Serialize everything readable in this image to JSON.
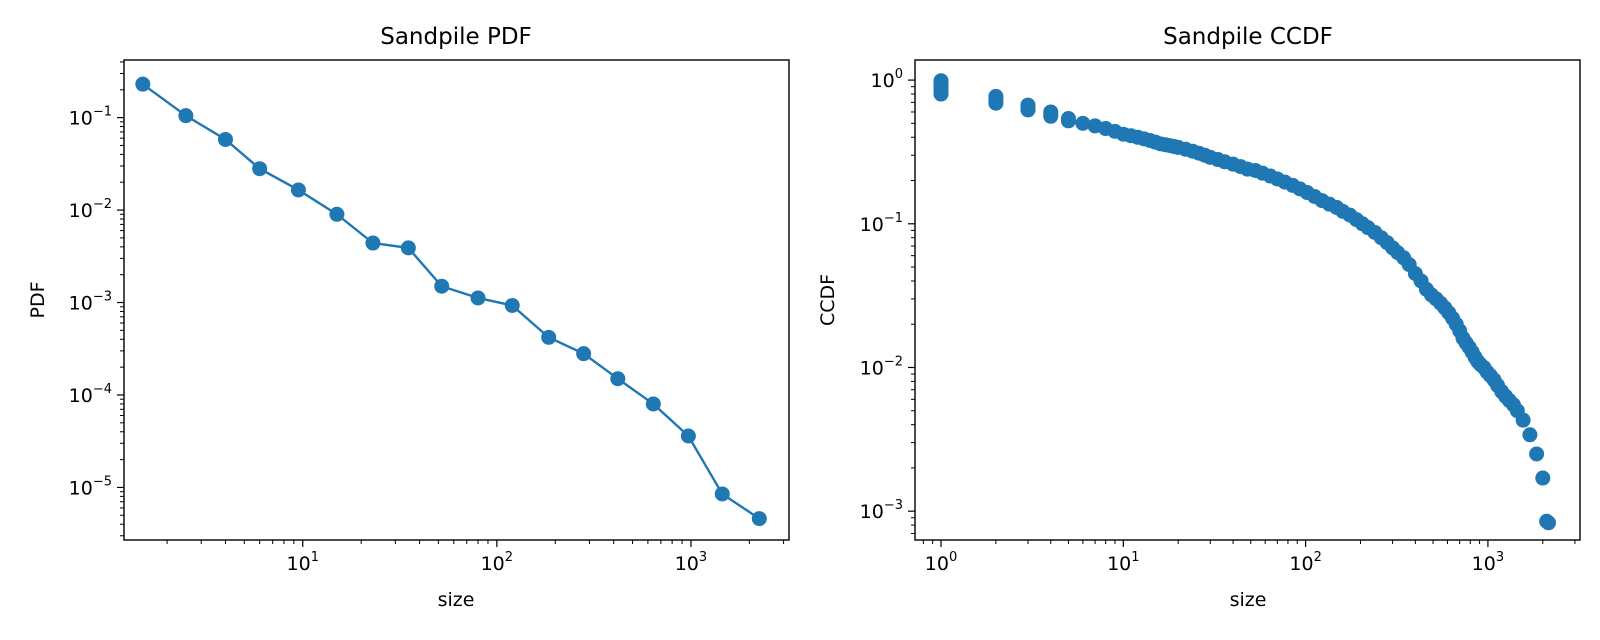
{
  "chart_data": [
    {
      "type": "line",
      "title": "Sandpile PDF",
      "xlabel": "size",
      "ylabel": "PDF",
      "xscale": "log",
      "yscale": "log",
      "xlim": [
        1.2,
        3200
      ],
      "ylim": [
        2.7e-06,
        0.42
      ],
      "grid": false,
      "marker": "circle",
      "color": "#1f77b4",
      "xticks": [
        {
          "value": 10,
          "base": "10",
          "exp": "1"
        },
        {
          "value": 100,
          "base": "10",
          "exp": "2"
        },
        {
          "value": 1000,
          "base": "10",
          "exp": "3"
        }
      ],
      "yticks": [
        {
          "value": 0.1,
          "base": "10",
          "exp": "−1"
        },
        {
          "value": 0.01,
          "base": "10",
          "exp": "−2"
        },
        {
          "value": 0.001,
          "base": "10",
          "exp": "−3"
        },
        {
          "value": 0.0001,
          "base": "10",
          "exp": "−4"
        },
        {
          "value": 1e-05,
          "base": "10",
          "exp": "−5"
        }
      ],
      "series": [
        {
          "x": [
            1.5,
            2.5,
            4,
            6,
            9.5,
            15,
            23,
            35,
            52,
            80,
            120,
            185,
            280,
            420,
            640,
            970,
            1450,
            2250
          ],
          "y": [
            0.23,
            0.105,
            0.058,
            0.028,
            0.0165,
            0.009,
            0.0044,
            0.0039,
            0.0015,
            0.00112,
            0.00093,
            0.00042,
            0.00028,
            0.00015,
            8e-05,
            3.6e-05,
            8.5e-06,
            4.6e-06
          ]
        }
      ]
    },
    {
      "type": "scatter",
      "title": "Sandpile CCDF",
      "xlabel": "size",
      "ylabel": "CCDF",
      "xscale": "log",
      "yscale": "log",
      "xlim": [
        0.72,
        3200
      ],
      "ylim": [
        0.00063,
        1.38
      ],
      "grid": false,
      "marker": "circle",
      "color": "#1f77b4",
      "xticks": [
        {
          "value": 1,
          "base": "10",
          "exp": "0"
        },
        {
          "value": 10,
          "base": "10",
          "exp": "1"
        },
        {
          "value": 100,
          "base": "10",
          "exp": "2"
        },
        {
          "value": 1000,
          "base": "10",
          "exp": "3"
        }
      ],
      "yticks": [
        {
          "value": 1,
          "base": "10",
          "exp": "0"
        },
        {
          "value": 0.1,
          "base": "10",
          "exp": "−1"
        },
        {
          "value": 0.01,
          "base": "10",
          "exp": "−2"
        },
        {
          "value": 0.001,
          "base": "10",
          "exp": "−3"
        }
      ],
      "series": [
        {
          "x": [
            1,
            1,
            1,
            1,
            1,
            1,
            1,
            2,
            2,
            2,
            2,
            3,
            3,
            3,
            4,
            4,
            4,
            5,
            5,
            6,
            7,
            8,
            9,
            10,
            11,
            12,
            13,
            14,
            15,
            16,
            17,
            18,
            19,
            20,
            22,
            24,
            26,
            28,
            30,
            33,
            36,
            40,
            44,
            48,
            53,
            58,
            64,
            70,
            77,
            85,
            93,
            102,
            112,
            123,
            135,
            148,
            160,
            175,
            190,
            205,
            220,
            240,
            260,
            280,
            300,
            320,
            345,
            370,
            400,
            430,
            460,
            490,
            520,
            550,
            580,
            610,
            640,
            670,
            700,
            730,
            760,
            790,
            820,
            850,
            880,
            910,
            950,
            990,
            1030,
            1080,
            1130,
            1190,
            1250,
            1310,
            1380,
            1450,
            1560,
            1700,
            1850,
            2000,
            2100,
            2150
          ],
          "y": [
            0.99,
            0.95,
            0.92,
            0.89,
            0.86,
            0.83,
            0.8,
            0.77,
            0.74,
            0.71,
            0.69,
            0.67,
            0.64,
            0.62,
            0.6,
            0.58,
            0.56,
            0.54,
            0.52,
            0.5,
            0.48,
            0.46,
            0.44,
            0.42,
            0.41,
            0.4,
            0.39,
            0.38,
            0.37,
            0.36,
            0.355,
            0.35,
            0.345,
            0.34,
            0.33,
            0.32,
            0.31,
            0.3,
            0.29,
            0.28,
            0.27,
            0.26,
            0.25,
            0.24,
            0.235,
            0.225,
            0.215,
            0.205,
            0.195,
            0.185,
            0.175,
            0.165,
            0.155,
            0.145,
            0.137,
            0.13,
            0.122,
            0.115,
            0.107,
            0.1,
            0.094,
            0.087,
            0.08,
            0.074,
            0.068,
            0.063,
            0.058,
            0.052,
            0.045,
            0.04,
            0.035,
            0.032,
            0.03,
            0.028,
            0.026,
            0.024,
            0.022,
            0.02,
            0.018,
            0.016,
            0.0148,
            0.0138,
            0.0128,
            0.0118,
            0.011,
            0.0105,
            0.01,
            0.0093,
            0.0088,
            0.0082,
            0.0075,
            0.0068,
            0.0063,
            0.0059,
            0.0055,
            0.005,
            0.0043,
            0.0034,
            0.0025,
            0.0017,
            0.00085,
            0.00083
          ]
        }
      ]
    }
  ]
}
